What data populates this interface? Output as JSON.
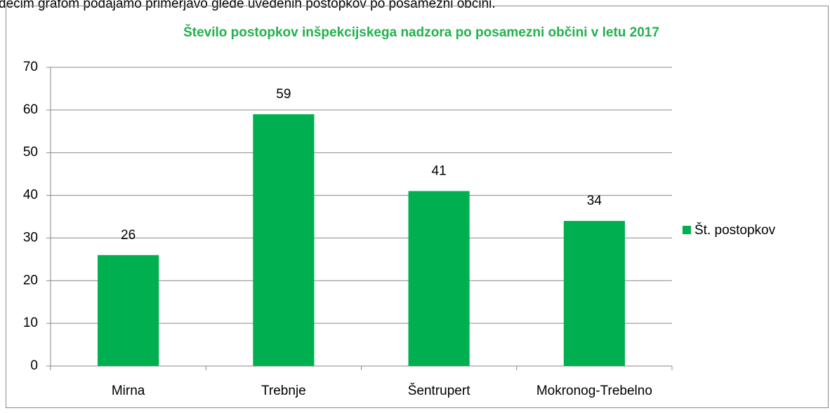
{
  "page_text": "dečim grafom podajamo primerjavo glede uvedenih postopkov po posamezni občini.",
  "chart_data": {
    "type": "bar",
    "title": "Število postopkov inšpekcijskega nadzora po posamezni občini v letu 2017",
    "categories": [
      "Mirna",
      "Trebnje",
      "Šentrupert",
      "Mokronog-Trebelno"
    ],
    "series": [
      {
        "name": "Št. postopkov",
        "color": "#00b050",
        "values": [
          26,
          59,
          41,
          34
        ]
      }
    ],
    "ylim": [
      0,
      70
    ],
    "yticks": [
      0,
      10,
      20,
      30,
      40,
      50,
      60,
      70
    ],
    "grid": true,
    "legend": "right"
  }
}
